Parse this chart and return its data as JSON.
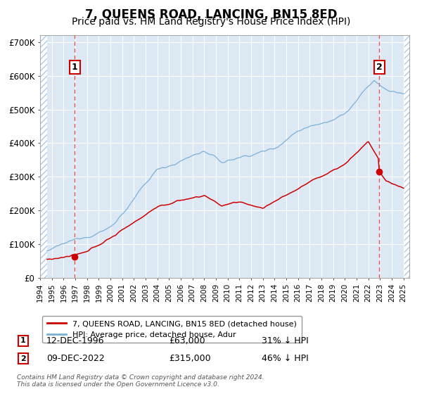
{
  "title": "7, QUEENS ROAD, LANCING, BN15 8ED",
  "subtitle": "Price paid vs. HM Land Registry's House Price Index (HPI)",
  "title_fontsize": 12,
  "subtitle_fontsize": 10,
  "plot_bg_color": "#dce9f5",
  "grid_color": "#ffffff",
  "hpi_line_color": "#7ab0d8",
  "price_line_color": "#cc0000",
  "marker_color": "#cc0000",
  "vline_color": "#e05050",
  "annotation_box_color": "#cc0000",
  "ylim": [
    0,
    720000
  ],
  "yticks": [
    0,
    100000,
    200000,
    300000,
    400000,
    500000,
    600000,
    700000
  ],
  "ytick_labels": [
    "£0",
    "£100K",
    "£200K",
    "£300K",
    "£400K",
    "£500K",
    "£600K",
    "£700K"
  ],
  "xmin": 1994.0,
  "xmax": 2025.5,
  "data_xmin": 1994.6,
  "data_xmax": 2025.1,
  "transaction1_x": 1996.95,
  "transaction1_y": 63000,
  "transaction1_label": "1",
  "transaction1_date": "12-DEC-1996",
  "transaction1_price": "£63,000",
  "transaction1_note": "31% ↓ HPI",
  "transaction2_x": 2022.93,
  "transaction2_y": 315000,
  "transaction2_label": "2",
  "transaction2_date": "09-DEC-2022",
  "transaction2_price": "£315,000",
  "transaction2_note": "46% ↓ HPI",
  "legend_label1": "7, QUEENS ROAD, LANCING, BN15 8ED (detached house)",
  "legend_label2": "HPI: Average price, detached house, Adur",
  "footer1": "Contains HM Land Registry data © Crown copyright and database right 2024.",
  "footer2": "This data is licensed under the Open Government Licence v3.0."
}
